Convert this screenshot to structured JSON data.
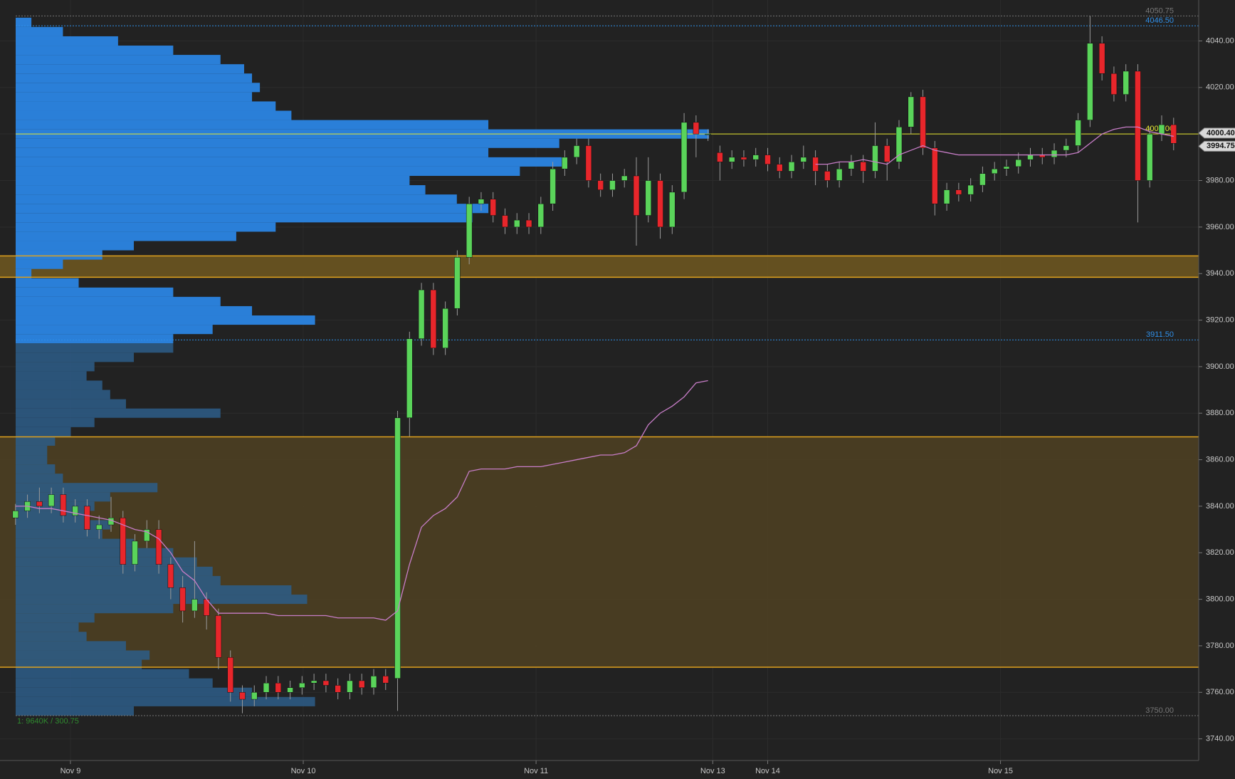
{
  "chart_data": {
    "type": "candlestick",
    "open": [
      3835,
      3838,
      3842,
      3840,
      3845,
      3836,
      3840,
      3830,
      3832,
      3835,
      3815,
      3825,
      3830,
      3815,
      3805,
      3795,
      3800,
      3793,
      3775,
      3760,
      3757,
      3760,
      3764,
      3760,
      3762,
      3764,
      3765,
      3763,
      3760,
      3765,
      3762,
      3767,
      3766,
      3878,
      3912,
      3933,
      3908,
      3925,
      3947,
      3970,
      3972,
      3965,
      3960,
      3963,
      3960,
      3970,
      3985,
      3990,
      3995,
      3980,
      3976,
      3980,
      3982,
      3965,
      3980,
      3960,
      3975,
      4005,
      4000,
      3992,
      3988,
      3990,
      3989,
      3991,
      3987,
      3984,
      3988,
      3990,
      3984,
      3980,
      3985,
      3988,
      3984,
      3995,
      3988,
      4003,
      4016,
      3994,
      3970,
      3976,
      3974,
      3978,
      3983,
      3985,
      3986,
      3989,
      3991,
      3990,
      3993,
      3995,
      4006,
      4039,
      4026,
      4017,
      4027,
      3980,
      4000,
      4004
    ],
    "high": [
      3841,
      3845,
      3848,
      3848,
      3848,
      3843,
      3843,
      3836,
      3844,
      3838,
      3828,
      3834,
      3834,
      3818,
      3810,
      3825,
      3803,
      3796,
      3778,
      3763,
      3763,
      3767,
      3767,
      3765,
      3767,
      3768,
      3768,
      3766,
      3768,
      3768,
      3770,
      3770,
      3881,
      3915,
      3936,
      3936,
      3928,
      3950,
      3973,
      3975,
      3975,
      3968,
      3966,
      3966,
      3973,
      3988,
      3993,
      3998,
      3998,
      3983,
      3983,
      3985,
      3990,
      3990,
      3983,
      3978,
      4009,
      4008,
      4002,
      3995,
      3993,
      3993,
      3994,
      3994,
      3990,
      3991,
      3995,
      3993,
      3987,
      3988,
      3991,
      3991,
      4005,
      3998,
      4006,
      4018,
      4019,
      3997,
      3979,
      3979,
      3981,
      3986,
      3988,
      3989,
      3992,
      3994,
      3994,
      3996,
      3998,
      4009,
      4050.75,
      4042,
      4029,
      4030,
      4030,
      4003,
      4008,
      4007
    ],
    "low": [
      3832,
      3835,
      3837,
      3837,
      3833,
      3833,
      3827,
      3826,
      3829,
      3811,
      3812,
      3822,
      3811,
      3800,
      3790,
      3792,
      3787,
      3770,
      3756,
      3751,
      3754,
      3757,
      3757,
      3757,
      3759,
      3761,
      3760,
      3757,
      3757,
      3759,
      3759,
      3761,
      3752,
      3870,
      3909,
      3905,
      3905,
      3922,
      3944,
      3967,
      3962,
      3957,
      3957,
      3957,
      3957,
      3967,
      3982,
      3987,
      3977,
      3973,
      3973,
      3977,
      3952,
      3962,
      3955,
      3957,
      3972,
      3990,
      3997,
      3980,
      3985,
      3986,
      3986,
      3984,
      3981,
      3981,
      3985,
      3978,
      3977,
      3977,
      3982,
      3979,
      3981,
      3980,
      3985,
      4000,
      3991,
      3965,
      3967,
      3971,
      3971,
      3975,
      3980,
      3982,
      3983,
      3986,
      3987,
      3987,
      3990,
      3992,
      4003,
      4023,
      4014,
      4014,
      3962,
      3977,
      3997,
      3993
    ],
    "close": [
      3838,
      3842,
      3840,
      3845,
      3836,
      3840,
      3830,
      3832,
      3835,
      3815,
      3825,
      3830,
      3815,
      3805,
      3795,
      3800,
      3793,
      3775,
      3760,
      3757,
      3760,
      3764,
      3760,
      3762,
      3764,
      3765,
      3763,
      3760,
      3765,
      3762,
      3767,
      3764,
      3878,
      3912,
      3933,
      3908,
      3925,
      3947,
      3970,
      3972,
      3965,
      3960,
      3963,
      3960,
      3970,
      3985,
      3990,
      3995,
      3980,
      3976,
      3980,
      3982,
      3965,
      3980,
      3960,
      3975,
      4005,
      4000,
      4000,
      3988,
      3990,
      3989,
      3991,
      3987,
      3984,
      3988,
      3990,
      3984,
      3980,
      3985,
      3988,
      3984,
      3995,
      3988,
      4003,
      4016,
      3994,
      3970,
      3976,
      3974,
      3978,
      3983,
      3985,
      3986,
      3989,
      3991,
      3990,
      3993,
      3995,
      4006,
      4039,
      4026,
      4017,
      4027,
      3980,
      4000,
      4004,
      3996
    ],
    "up_color": "#5ad45a",
    "down_color": "#e8262b",
    "wick_color": "#9a9a9a",
    "vwap": {
      "color": "#c77dc7",
      "values": [
        3840,
        3840,
        3839,
        3839,
        3838,
        3837,
        3836,
        3835,
        3834,
        3832,
        3830,
        3829,
        3826,
        3820,
        3812,
        3808,
        3800,
        3794,
        3794,
        3794,
        3794,
        3794,
        3793,
        3793,
        3793,
        3793,
        3793,
        3792,
        3792,
        3792,
        3792,
        3791,
        3795,
        3815,
        3831,
        3836,
        3839,
        3844,
        3855,
        3856,
        3856,
        3856,
        3857,
        3857,
        3857,
        3858,
        3859,
        3860,
        3861,
        3862,
        3862,
        3863,
        3866,
        3875,
        3880,
        3883,
        3887,
        3893,
        3894,
        null,
        null,
        null,
        null,
        null,
        null,
        null,
        null,
        3987,
        3987,
        3988,
        3988,
        3989,
        3988,
        3987,
        3991,
        3993,
        3995,
        3993,
        3992,
        3991,
        3991,
        3991,
        3991,
        3991,
        3991,
        3991,
        3991,
        3991,
        3991,
        3992,
        3996,
        4000,
        4002,
        4003,
        4003,
        4001,
        4000,
        3999
      ]
    },
    "volume_profile": {
      "color": "#2a7fd8",
      "color_below": "#2d5d88",
      "prices": [
        4048,
        4044,
        4040,
        4036,
        4032,
        4028,
        4024,
        4020,
        4016,
        4012,
        4008,
        4004,
        4000,
        3996,
        3992,
        3988,
        3984,
        3980,
        3976,
        3972,
        3968,
        3964,
        3960,
        3956,
        3952,
        3948,
        3944,
        3940,
        3936,
        3932,
        3928,
        3924,
        3920,
        3916,
        3912,
        3908,
        3904,
        3900,
        3896,
        3892,
        3888,
        3884,
        3880,
        3876,
        3872,
        3868,
        3864,
        3860,
        3856,
        3852,
        3848,
        3844,
        3840,
        3836,
        3832,
        3828,
        3824,
        3820,
        3816,
        3812,
        3808,
        3804,
        3800,
        3796,
        3792,
        3788,
        3784,
        3780,
        3776,
        3772,
        3768,
        3764,
        3760,
        3756,
        3752
      ],
      "volumes": [
        20,
        60,
        130,
        200,
        260,
        290,
        300,
        310,
        300,
        330,
        350,
        600,
        880,
        690,
        600,
        700,
        640,
        500,
        520,
        560,
        600,
        580,
        330,
        280,
        150,
        110,
        60,
        20,
        80,
        200,
        260,
        300,
        380,
        250,
        200,
        200,
        150,
        100,
        90,
        110,
        120,
        140,
        260,
        100,
        70,
        50,
        40,
        40,
        50,
        60,
        180,
        120,
        100,
        90,
        120,
        110,
        150,
        200,
        230,
        250,
        260,
        350,
        370,
        200,
        100,
        80,
        90,
        140,
        170,
        160,
        220,
        250,
        300,
        380,
        150
      ]
    },
    "zones": [
      {
        "from": 3938.4,
        "to": 3947.6,
        "color": "#6b5520"
      },
      {
        "from": 3770.8,
        "to": 3869.8,
        "color": "#4d3f22"
      }
    ],
    "zone_edge_color": "#e0a21e",
    "levels": [
      {
        "value": 4050.75,
        "label": "4050.75",
        "color": "#777777"
      },
      {
        "value": 4046.5,
        "label": "4046.50",
        "color": "#2f8fe8"
      },
      {
        "value": 4000,
        "label": "4000.00",
        "color": "#e6e62e"
      },
      {
        "value": 3911.5,
        "label": "3911.50",
        "color": "#2f8fe8",
        "splits_profile": true
      },
      {
        "value": 3750,
        "label": "3750.00",
        "color": "#777777"
      }
    ],
    "price_tags": [
      {
        "value": 4000.4,
        "label": "4000.40"
      },
      {
        "value": 3994.75,
        "label": "3994.75"
      }
    ],
    "status": "1: 9640K / 300.75",
    "ylim": [
      3730.7,
      4057.6
    ],
    "yticks": [
      {
        "value": 3740,
        "label": "3740.00"
      },
      {
        "value": 3760,
        "label": "3760.00"
      },
      {
        "value": 3780,
        "label": "3780.00"
      },
      {
        "value": 3800,
        "label": "3800.00"
      },
      {
        "value": 3820,
        "label": "3820.00"
      },
      {
        "value": 3840,
        "label": "3840.00"
      },
      {
        "value": 3860,
        "label": "3860.00"
      },
      {
        "value": 3880,
        "label": "3880.00"
      },
      {
        "value": 3900,
        "label": "3900.00"
      },
      {
        "value": 3920,
        "label": "3920.00"
      },
      {
        "value": 3940,
        "label": "3940.00"
      },
      {
        "value": 3960,
        "label": "3960.00"
      },
      {
        "value": 3980,
        "label": "3980.00"
      },
      {
        "value": 4000,
        "label": "4000.00"
      },
      {
        "value": 4020,
        "label": "4020.00"
      },
      {
        "value": 4040,
        "label": "4040.00"
      }
    ],
    "xlim": [
      -1.3,
      99.1
    ],
    "xticks": [
      {
        "value": 4.6,
        "label": "Nov 9"
      },
      {
        "value": 24.1,
        "label": "Nov 10"
      },
      {
        "value": 43.6,
        "label": "Nov 11"
      },
      {
        "value": 58.4,
        "label": "Nov 13"
      },
      {
        "value": 63,
        "label": "Nov 14"
      },
      {
        "value": 82.5,
        "label": "Nov 15"
      }
    ],
    "grid": true
  }
}
